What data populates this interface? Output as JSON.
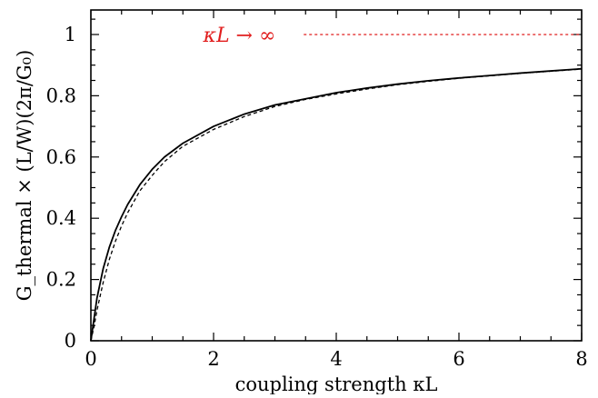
{
  "chart_data": {
    "type": "line",
    "xlabel": "coupling strength κL",
    "ylabel": "G_thermal × (L/W)(2π/G₀)",
    "xlim": [
      0,
      8
    ],
    "ylim": [
      0,
      1.08
    ],
    "x_ticks": [
      "0",
      "2",
      "4",
      "6",
      "8"
    ],
    "y_ticks": [
      "0",
      "0.2",
      "0.4",
      "0.6",
      "0.8",
      "1"
    ],
    "grid": false,
    "series": [
      {
        "style": "solid",
        "color": "#000000",
        "x": [
          0,
          0.05,
          0.1,
          0.2,
          0.3,
          0.4,
          0.5,
          0.6,
          0.8,
          1.0,
          1.2,
          1.5,
          2.0,
          2.5,
          3.0,
          3.5,
          4.0,
          4.5,
          5.0,
          5.5,
          6.0,
          6.5,
          7.0,
          7.5,
          8.0
        ],
        "y": [
          0.0,
          0.07,
          0.14,
          0.235,
          0.305,
          0.36,
          0.405,
          0.445,
          0.51,
          0.56,
          0.6,
          0.645,
          0.7,
          0.74,
          0.77,
          0.79,
          0.81,
          0.825,
          0.838,
          0.849,
          0.858,
          0.866,
          0.874,
          0.881,
          0.888
        ]
      },
      {
        "style": "dashed",
        "color": "#000000",
        "x": [
          0,
          0.05,
          0.1,
          0.2,
          0.3,
          0.4,
          0.5,
          0.6,
          0.8,
          1.0,
          1.2,
          1.5,
          2.0,
          2.5,
          3.0,
          3.5,
          4.0,
          4.5,
          5.0,
          5.5,
          6.0,
          6.5,
          7.0,
          7.5,
          8.0
        ],
        "y": [
          0.0,
          0.045,
          0.1,
          0.19,
          0.265,
          0.325,
          0.375,
          0.418,
          0.49,
          0.54,
          0.585,
          0.635,
          0.69,
          0.732,
          0.765,
          0.788,
          0.806,
          0.822,
          0.836,
          0.847,
          0.857,
          0.865,
          0.873,
          0.88,
          0.887
        ]
      }
    ],
    "reference_line": {
      "y": 1,
      "x_from": 3.47,
      "x_to": 8,
      "style": "dotted",
      "color": "#e11d1d"
    },
    "annotation": {
      "text": "κL → ∞",
      "x": 1.83,
      "y": 1,
      "color": "#e11d1d"
    }
  }
}
